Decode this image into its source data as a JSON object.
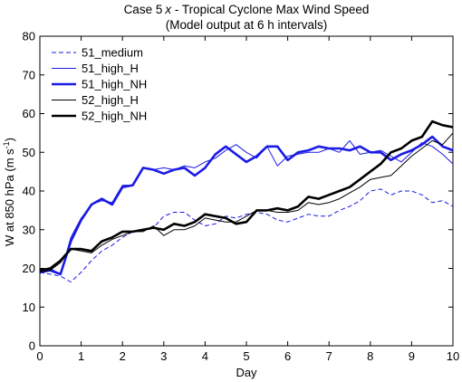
{
  "chart_data": {
    "type": "line",
    "title_prefix": "Case 5",
    "title_italic": "x",
    "title_suffix": " - Tropical Cyclone Max Wind Speed",
    "subtitle": "(Model output at 6 h intervals)",
    "xlabel": "Day",
    "ylabel_main": "W at 850 hPa (m s",
    "ylabel_exp": "-1",
    "ylabel_close": ")",
    "xlim": [
      0,
      10
    ],
    "ylim": [
      0,
      80
    ],
    "xticks": [
      0,
      1,
      2,
      3,
      4,
      5,
      6,
      7,
      8,
      9,
      10
    ],
    "yticks": [
      0,
      10,
      20,
      30,
      40,
      50,
      60,
      70,
      80
    ],
    "grid": false,
    "legend_position": "top-left",
    "series": [
      {
        "name": "51_medium",
        "color": "#1a1ae6",
        "style": "dashed",
        "width": "thin",
        "legend_color": "#1a1ae6",
        "x": [
          0,
          0.25,
          0.5,
          0.75,
          1,
          1.25,
          1.5,
          1.75,
          2,
          2.25,
          2.5,
          2.75,
          3,
          3.25,
          3.5,
          3.75,
          4,
          4.25,
          4.5,
          4.75,
          5,
          5.25,
          5.5,
          5.75,
          6,
          6.25,
          6.5,
          6.75,
          7,
          7.25,
          7.5,
          7.75,
          8,
          8.25,
          8.5,
          8.75,
          9,
          9.25,
          9.5,
          9.75,
          10
        ],
        "y": [
          19,
          18.5,
          18,
          16.5,
          19,
          22,
          24.5,
          26,
          28,
          29.5,
          30,
          30.5,
          33.5,
          34.5,
          34.5,
          32.5,
          31,
          31.5,
          33.5,
          33,
          34,
          34.5,
          34,
          32.5,
          32,
          33,
          34,
          33.5,
          33.5,
          35,
          36,
          37.5,
          40,
          40.5,
          39,
          40,
          40,
          39,
          37,
          37.5,
          36
        ]
      },
      {
        "name": "51_high_H",
        "color": "#1a1ae6",
        "style": "solid",
        "width": "thin",
        "legend_color": "#1a1ae6",
        "x": [
          0,
          0.25,
          0.5,
          0.75,
          1,
          1.25,
          1.5,
          1.75,
          2,
          2.25,
          2.5,
          2.75,
          3,
          3.25,
          3.5,
          3.75,
          4,
          4.25,
          4.5,
          4.75,
          5,
          5.25,
          5.5,
          5.75,
          6,
          6.25,
          6.5,
          6.75,
          7,
          7.25,
          7.5,
          7.75,
          8,
          8.25,
          8.5,
          8.75,
          9,
          9.25,
          9.5,
          9.75,
          10
        ],
        "y": [
          19,
          20,
          18.5,
          28,
          33,
          36.5,
          37.5,
          37,
          41.5,
          41.5,
          46,
          45.5,
          46,
          45.5,
          46.5,
          46,
          47.5,
          48.5,
          50.5,
          52,
          50,
          48.5,
          51.5,
          46.5,
          49,
          49.5,
          50,
          50,
          51,
          50,
          53,
          49.5,
          50,
          50.5,
          49,
          47.5,
          50,
          52.5,
          51.5,
          49.5,
          47
        ]
      },
      {
        "name": "51_high_NH",
        "color": "#1a1ae6",
        "style": "solid",
        "width": "thick",
        "legend_color": "#1a1ae6",
        "x": [
          0,
          0.25,
          0.5,
          0.75,
          1,
          1.25,
          1.5,
          1.75,
          2,
          2.25,
          2.5,
          2.75,
          3,
          3.25,
          3.5,
          3.75,
          4,
          4.25,
          4.5,
          4.75,
          5,
          5.25,
          5.5,
          5.75,
          6,
          6.25,
          6.5,
          6.75,
          7,
          7.25,
          7.5,
          7.75,
          8,
          8.25,
          8.5,
          8.75,
          9,
          9.25,
          9.5,
          9.75,
          10
        ],
        "y": [
          19,
          19.5,
          18.5,
          27,
          32.5,
          36.5,
          38,
          36.5,
          41,
          41.5,
          46,
          45.5,
          44.5,
          45.5,
          46,
          44,
          46,
          49.5,
          51.5,
          49.5,
          47.5,
          49,
          51.5,
          51.5,
          48,
          50,
          50.5,
          51.5,
          51,
          51,
          50.5,
          51.5,
          50,
          50,
          48,
          49.5,
          50.5,
          52,
          54,
          51.5,
          50.5
        ]
      },
      {
        "name": "52_high_H",
        "color": "#000000",
        "style": "solid",
        "width": "thin",
        "legend_color": "#000000",
        "x": [
          0,
          0.25,
          0.5,
          0.75,
          1,
          1.25,
          1.5,
          1.75,
          2,
          2.25,
          2.5,
          2.75,
          3,
          3.25,
          3.5,
          3.75,
          4,
          4.25,
          4.5,
          4.75,
          5,
          5.25,
          5.5,
          5.75,
          6,
          6.25,
          6.5,
          6.75,
          7,
          7.25,
          7.5,
          7.75,
          8,
          8.25,
          8.5,
          8.75,
          9,
          9.25,
          9.5,
          9.75,
          10
        ],
        "y": [
          19,
          19.5,
          21.5,
          25,
          24.5,
          24,
          26,
          27.5,
          28.5,
          29.5,
          29.5,
          31,
          28.5,
          30,
          30,
          31,
          33,
          32.5,
          32,
          32,
          33.5,
          35,
          35,
          34.5,
          34.5,
          35,
          37,
          36.5,
          37,
          38,
          39.5,
          41,
          43,
          43.5,
          44,
          46.5,
          49,
          51,
          53,
          52,
          55
        ]
      },
      {
        "name": "52_high_NH",
        "color": "#000000",
        "style": "solid",
        "width": "thick",
        "legend_color": "#000000",
        "x": [
          0,
          0.25,
          0.5,
          0.75,
          1,
          1.25,
          1.5,
          1.75,
          2,
          2.25,
          2.5,
          2.75,
          3,
          3.25,
          3.5,
          3.75,
          4,
          4.25,
          4.5,
          4.75,
          5,
          5.25,
          5.5,
          5.75,
          6,
          6.25,
          6.5,
          6.75,
          7,
          7.25,
          7.5,
          7.75,
          8,
          8.25,
          8.5,
          8.75,
          9,
          9.25,
          9.5,
          9.75,
          10
        ],
        "y": [
          19.5,
          20,
          22,
          25,
          25,
          24.5,
          27,
          28,
          29.5,
          29.5,
          30,
          30.5,
          30,
          31.5,
          31,
          32,
          34,
          33.5,
          33,
          31.5,
          32,
          35,
          35,
          35.5,
          35,
          36,
          38.5,
          38,
          39,
          40,
          41,
          43,
          45,
          47,
          50,
          51,
          53,
          54,
          58,
          57,
          56.5
        ]
      }
    ]
  }
}
